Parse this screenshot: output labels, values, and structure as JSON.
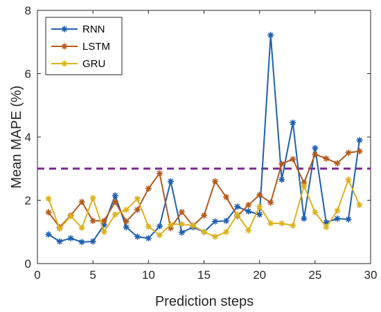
{
  "chart_data": {
    "type": "line",
    "title": "",
    "xlabel": "Prediction steps",
    "ylabel": "Mean MAPE (%)",
    "xlim": [
      0,
      30
    ],
    "ylim": [
      0,
      8
    ],
    "xticks": [
      0,
      5,
      10,
      15,
      20,
      25,
      30
    ],
    "yticks": [
      0,
      2,
      4,
      6,
      8
    ],
    "grid": false,
    "legend_position": "top-left",
    "x": [
      1,
      2,
      3,
      4,
      5,
      6,
      7,
      8,
      9,
      10,
      11,
      12,
      13,
      14,
      15,
      16,
      17,
      18,
      19,
      20,
      21,
      22,
      23,
      24,
      25,
      26,
      27,
      28,
      29
    ],
    "series": [
      {
        "name": "RNN",
        "color": "#1f5fb0",
        "values": [
          0.92,
          0.7,
          0.8,
          0.68,
          0.7,
          1.22,
          2.15,
          1.15,
          0.85,
          0.8,
          1.18,
          2.6,
          0.98,
          1.15,
          1.0,
          1.33,
          1.35,
          1.8,
          1.65,
          1.55,
          7.22,
          2.65,
          4.45,
          1.42,
          3.65,
          1.3,
          1.42,
          1.4,
          3.9
        ]
      },
      {
        "name": "LSTM",
        "color": "#b55a1a",
        "values": [
          1.62,
          1.15,
          1.52,
          1.95,
          1.35,
          1.35,
          1.95,
          1.33,
          1.7,
          2.37,
          2.85,
          1.12,
          1.63,
          1.2,
          1.52,
          2.6,
          2.1,
          1.5,
          1.85,
          2.17,
          1.93,
          3.15,
          3.3,
          2.55,
          3.45,
          3.32,
          3.17,
          3.5,
          3.55
        ]
      },
      {
        "name": "GRU",
        "color": "#dbb31f",
        "values": [
          2.05,
          1.1,
          1.5,
          1.13,
          2.07,
          1.0,
          1.55,
          1.7,
          2.05,
          1.17,
          0.9,
          1.23,
          1.25,
          1.2,
          1.0,
          0.85,
          1.0,
          1.55,
          1.05,
          1.8,
          1.27,
          1.27,
          1.2,
          2.45,
          1.62,
          1.15,
          1.67,
          2.65,
          1.85
        ]
      }
    ],
    "reference_line": {
      "y": 3.0,
      "style": "dashed",
      "color": "#7a2a8e"
    },
    "axis_color": "#262626"
  }
}
